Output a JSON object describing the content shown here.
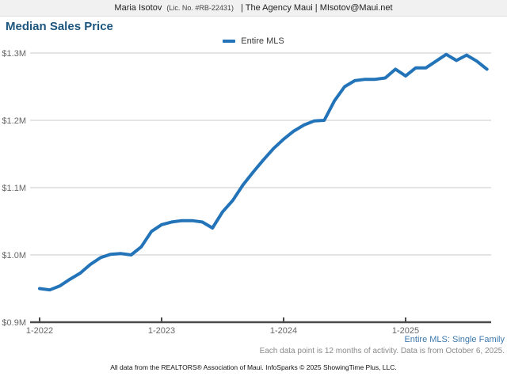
{
  "header": {
    "agent_name": "Maria Isotov",
    "license": "(Lic. No. #RB-22431)",
    "affiliation": "| The Agency Maui | MIsotov@Maui.net"
  },
  "title": "Median Sales Price",
  "legend": {
    "label": "Entire MLS"
  },
  "colors": {
    "title": "#1c567e",
    "line": "#2273b8",
    "gridline": "#c9c9c9",
    "axis": "#4a4a4a",
    "tick_label": "#666666",
    "footnote_series": "#3e79ae"
  },
  "chart_data": {
    "type": "line",
    "title": "Median Sales Price",
    "legend_position": "top-center",
    "grid": true,
    "x_unit": "month",
    "xlabel": "",
    "ylabel": "",
    "ylim": [
      0.9,
      1.3
    ],
    "y_tick_labels": [
      "$0.9M",
      "$1.0M",
      "$1.1M",
      "$1.2M",
      "$1.3M"
    ],
    "y_tick_values": [
      0.9,
      1.0,
      1.1,
      1.2,
      1.3
    ],
    "x_tick_labels": [
      "1-2022",
      "1-2023",
      "1-2024",
      "1-2025"
    ],
    "x_tick_month_offsets": [
      0,
      12,
      24,
      36
    ],
    "months": [
      "1-2022",
      "2-2022",
      "3-2022",
      "4-2022",
      "5-2022",
      "6-2022",
      "7-2022",
      "8-2022",
      "9-2022",
      "10-2022",
      "11-2022",
      "12-2022",
      "1-2023",
      "2-2023",
      "3-2023",
      "4-2023",
      "5-2023",
      "6-2023",
      "7-2023",
      "8-2023",
      "9-2023",
      "10-2023",
      "11-2023",
      "12-2023",
      "1-2024",
      "2-2024",
      "3-2024",
      "4-2024",
      "5-2024",
      "6-2024",
      "7-2024",
      "8-2024",
      "9-2024",
      "10-2024",
      "11-2024",
      "12-2024",
      "1-2025",
      "2-2025",
      "3-2025",
      "4-2025",
      "5-2025",
      "6-2025",
      "7-2025",
      "8-2025",
      "9-2025"
    ],
    "series": [
      {
        "name": "Entire MLS",
        "color": "#2273b8",
        "values": [
          0.95,
          0.948,
          0.954,
          0.964,
          0.973,
          0.986,
          0.996,
          1.001,
          1.002,
          1.0,
          1.012,
          1.035,
          1.045,
          1.049,
          1.051,
          1.051,
          1.049,
          1.04,
          1.064,
          1.081,
          1.104,
          1.123,
          1.141,
          1.158,
          1.172,
          1.184,
          1.193,
          1.199,
          1.2,
          1.229,
          1.25,
          1.259,
          1.261,
          1.261,
          1.263,
          1.276,
          1.266,
          1.278,
          1.278,
          1.288,
          1.298,
          1.289,
          1.297,
          1.288,
          1.276
        ]
      }
    ]
  },
  "footnotes": {
    "series": "Entire MLS: Single Family",
    "activity": "Each data point is 12 months of activity. Data is from October 6, 2025.",
    "attribution": "All data from the REALTORS® Association of Maui. InfoSparks © 2025 ShowingTime Plus, LLC."
  }
}
